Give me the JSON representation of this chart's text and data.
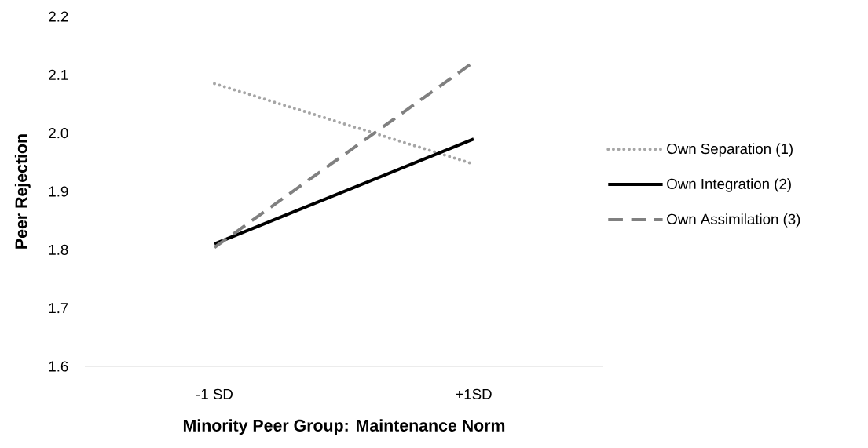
{
  "chart_data": {
    "type": "line",
    "xlabel": "Minority Peer Group: Maintenance Norm",
    "ylabel": "Peer Rejection",
    "categories": [
      "-1 SD",
      "+1SD"
    ],
    "series": [
      {
        "name": "Own Separation (1)",
        "color": "#a6a6a6",
        "line_style": "dotted",
        "values": [
          2.085,
          1.947
        ]
      },
      {
        "name": "Own Integration  (2)",
        "color": "#000000",
        "line_style": "solid",
        "values": [
          1.81,
          1.99
        ]
      },
      {
        "name": "Own Assimilation (3)",
        "color": "#808080",
        "line_style": "dashed",
        "values": [
          1.804,
          2.122
        ]
      }
    ],
    "ylim": [
      1.6,
      2.2
    ],
    "yticks": [
      {
        "value": 1.6,
        "label": "1.6"
      },
      {
        "value": 1.7,
        "label": "1.7"
      },
      {
        "value": 1.8,
        "label": "1.8"
      },
      {
        "value": 1.9,
        "label": "1.9"
      },
      {
        "value": 2.0,
        "label": "2.0"
      },
      {
        "value": 2.1,
        "label": "2.1"
      },
      {
        "value": 2.2,
        "label": "2.2"
      }
    ],
    "grid": false,
    "legend": "right",
    "marker": "none"
  }
}
